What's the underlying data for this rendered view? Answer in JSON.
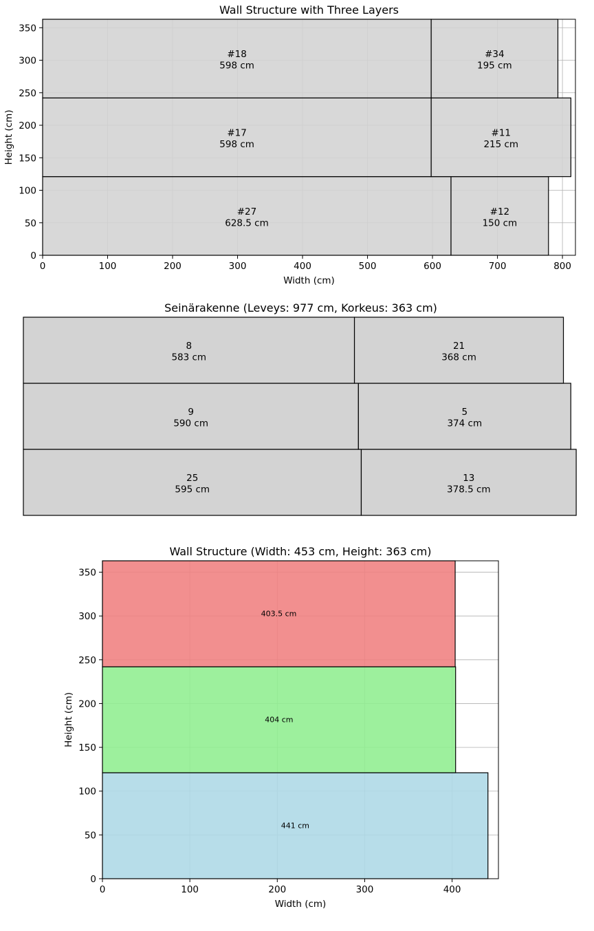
{
  "chart_data": [
    {
      "type": "bar",
      "title": "Wall Structure with Three Layers",
      "xlabel": "Width (cm)",
      "ylabel": "Height (cm)",
      "xlim": [
        0,
        820
      ],
      "ylim": [
        0,
        363
      ],
      "xticks": [
        "0",
        "100",
        "200",
        "300",
        "400",
        "500",
        "600",
        "700",
        "800"
      ],
      "yticks": [
        "0",
        "50",
        "100",
        "150",
        "200",
        "250",
        "300",
        "350"
      ],
      "grid": true,
      "layers": [
        {
          "y0": 0,
          "y1": 121,
          "segments": [
            {
              "label": "#27",
              "length": 628.5,
              "text": "628.5 cm",
              "color": "#d3d3d3"
            },
            {
              "label": "#12",
              "length": 150,
              "text": "150 cm",
              "color": "#d3d3d3"
            }
          ]
        },
        {
          "y0": 121,
          "y1": 242,
          "segments": [
            {
              "label": "#17",
              "length": 598,
              "text": "598 cm",
              "color": "#d3d3d3"
            },
            {
              "label": "#11",
              "length": 215,
              "text": "215 cm",
              "color": "#d3d3d3"
            }
          ]
        },
        {
          "y0": 242,
          "y1": 363,
          "segments": [
            {
              "label": "#18",
              "length": 598,
              "text": "598 cm",
              "color": "#d3d3d3"
            },
            {
              "label": "#34",
              "length": 195,
              "text": "195 cm",
              "color": "#d3d3d3"
            }
          ]
        }
      ]
    },
    {
      "type": "bar",
      "title": "Seinärakenne (Leveys: 977 cm, Korkeus: 363 cm)",
      "xlabel": "",
      "ylabel": "",
      "xlim": [
        0,
        977
      ],
      "ylim": [
        0,
        363
      ],
      "grid": false,
      "axes_visible": false,
      "layers": [
        {
          "y0": 0,
          "y1": 121,
          "segments": [
            {
              "label": "25",
              "length": 595,
              "text": "595 cm",
              "color": "#d3d3d3"
            },
            {
              "label": "13",
              "length": 378.5,
              "text": "378.5 cm",
              "color": "#d3d3d3"
            }
          ]
        },
        {
          "y0": 121,
          "y1": 242,
          "segments": [
            {
              "label": "9",
              "length": 590,
              "text": "590 cm",
              "color": "#d3d3d3"
            },
            {
              "label": "5",
              "length": 374,
              "text": "374 cm",
              "color": "#d3d3d3"
            }
          ]
        },
        {
          "y0": 242,
          "y1": 363,
          "segments": [
            {
              "label": "8",
              "length": 583,
              "text": "583 cm",
              "color": "#d3d3d3"
            },
            {
              "label": "21",
              "length": 368,
              "text": "368 cm",
              "color": "#d3d3d3"
            }
          ]
        }
      ]
    },
    {
      "type": "bar",
      "title": "Wall Structure (Width: 453 cm, Height: 363 cm)",
      "xlabel": "Width (cm)",
      "ylabel": "Height (cm)",
      "xlim": [
        0,
        453
      ],
      "ylim": [
        0,
        363
      ],
      "xticks": [
        "0",
        "100",
        "200",
        "300",
        "400"
      ],
      "yticks": [
        "0",
        "50",
        "100",
        "150",
        "200",
        "250",
        "300",
        "350"
      ],
      "grid": true,
      "layers": [
        {
          "y0": 0,
          "y1": 121,
          "segments": [
            {
              "label": "",
              "length": 441,
              "text": "441 cm",
              "color": "#add8e6"
            }
          ]
        },
        {
          "y0": 121,
          "y1": 242,
          "segments": [
            {
              "label": "",
              "length": 404,
              "text": "404 cm",
              "color": "#90ee90"
            }
          ]
        },
        {
          "y0": 242,
          "y1": 363,
          "segments": [
            {
              "label": "",
              "length": 403.5,
              "text": "403.5 cm",
              "color": "#f08080"
            }
          ]
        }
      ]
    }
  ]
}
